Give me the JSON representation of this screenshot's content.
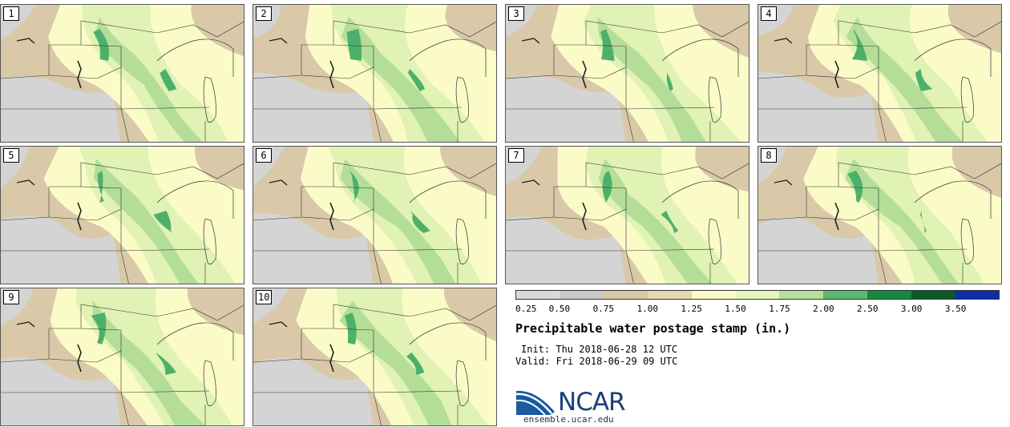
{
  "panels": [
    {
      "label": "1"
    },
    {
      "label": "2"
    },
    {
      "label": "3"
    },
    {
      "label": "4"
    },
    {
      "label": "5"
    },
    {
      "label": "6"
    },
    {
      "label": "7"
    },
    {
      "label": "8"
    },
    {
      "label": "9"
    },
    {
      "label": "10"
    }
  ],
  "colorbar": {
    "ticks": [
      "0.25",
      "0.50",
      "0.75",
      "1.00",
      "1.25",
      "1.50",
      "1.75",
      "2.00",
      "2.50",
      "3.00",
      "3.50"
    ],
    "colors": [
      "#d9d9d9",
      "#c9c9c9",
      "#d9c9a8",
      "#e8d8b0",
      "#fbfbc8",
      "#e6f5b8",
      "#b5e09a",
      "#5ab870",
      "#14883c",
      "#0b5a26",
      "#0b2ea8"
    ]
  },
  "title": "Precipitable water postage stamp (in.)",
  "init": "Init: Thu 2018-06-28 12 UTC",
  "valid": "Valid: Fri 2018-06-29 09 UTC",
  "logo": {
    "wordmark": "NCAR",
    "url": "ensemble.ucar.edu"
  },
  "palette": {
    "gray": "#d4d4d4",
    "tan": "#d9c9a8",
    "pale": "#fbfbc8",
    "light_green": "#e0f2b4",
    "green": "#b4de98",
    "dark_green": "#4db06a",
    "boundary": "#333333"
  }
}
